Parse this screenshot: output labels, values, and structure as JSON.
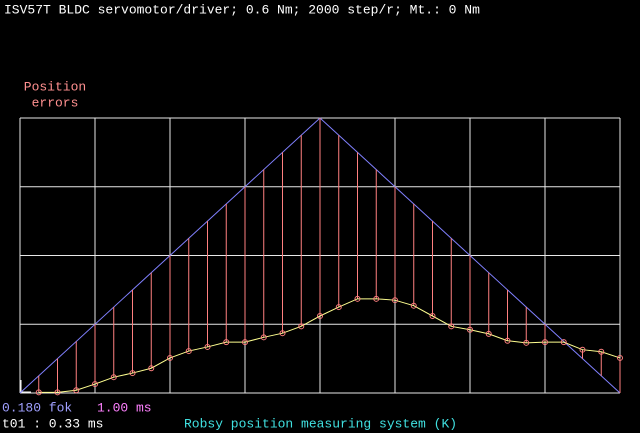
{
  "chart_data": {
    "type": "line",
    "title": "ISV57T BLDC servomotor/driver; 0.6 Nm; 2000 step/r; Mt.: 0 Nm",
    "y_label_lines": [
      "Position",
      "errors"
    ],
    "xlim": [
      0,
      8
    ],
    "ylim": [
      0,
      4
    ],
    "xticks": [
      0,
      1,
      2,
      3,
      4,
      5,
      6,
      7,
      8
    ],
    "yticks": [
      0,
      1,
      2,
      3,
      4
    ],
    "grid": true,
    "series": [
      {
        "color": "#8080ff",
        "x": [
          0,
          4,
          8
        ],
        "values": [
          0,
          4,
          0
        ]
      },
      {
        "color": "#ff8080",
        "line_color": "#ffff90",
        "error_color": "#ff8080",
        "x": [
          0.25,
          0.5,
          0.75,
          1,
          1.25,
          1.5,
          1.75,
          2,
          2.25,
          2.5,
          2.75,
          3,
          3.25,
          3.5,
          3.75,
          4,
          4.25,
          4.5,
          4.75,
          5,
          5.25,
          5.5,
          5.75,
          6,
          6.25,
          6.5,
          6.75,
          7,
          7.25,
          7.5,
          7.75,
          8
        ],
        "values": [
          0.01,
          0.01,
          0.04,
          0.13,
          0.23,
          0.29,
          0.36,
          0.51,
          0.61,
          0.67,
          0.74,
          0.74,
          0.81,
          0.87,
          0.97,
          1.12,
          1.25,
          1.37,
          1.37,
          1.35,
          1.27,
          1.12,
          0.97,
          0.92,
          0.86,
          0.76,
          0.73,
          0.74,
          0.74,
          0.63,
          0.6,
          0.51
        ]
      }
    ],
    "status": {
      "factor": "0.180 fok",
      "period": "1.00 ms",
      "t01": "t01 : 0.33 ms",
      "system": "Robsy position measuring system (K)"
    }
  }
}
